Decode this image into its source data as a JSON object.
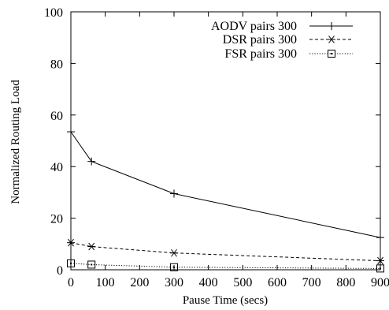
{
  "chart_data": {
    "type": "line",
    "xlabel": "Pause Time (secs)",
    "ylabel": "Normalized Routing Load",
    "xlim": [
      0,
      900
    ],
    "ylim": [
      0,
      100
    ],
    "xticks": [
      0,
      100,
      200,
      300,
      400,
      500,
      600,
      700,
      800,
      900
    ],
    "yticks": [
      0,
      20,
      40,
      60,
      80,
      100
    ],
    "grid": false,
    "legend_position": "top-right",
    "series": [
      {
        "name": "AODV pairs 300",
        "marker": "plus",
        "line_style": "solid",
        "x": [
          0,
          60,
          300,
          900
        ],
        "y": [
          53.5,
          42,
          29.5,
          12.5
        ]
      },
      {
        "name": "DSR pairs 300",
        "marker": "asterisk",
        "line_style": "dashed",
        "x": [
          0,
          60,
          300,
          900
        ],
        "y": [
          10.5,
          9,
          6.5,
          3.5
        ]
      },
      {
        "name": "FSR pairs 300",
        "marker": "square",
        "line_style": "dotted",
        "x": [
          0,
          60,
          300,
          900
        ],
        "y": [
          2.5,
          2,
          1,
          0.5
        ]
      }
    ]
  }
}
